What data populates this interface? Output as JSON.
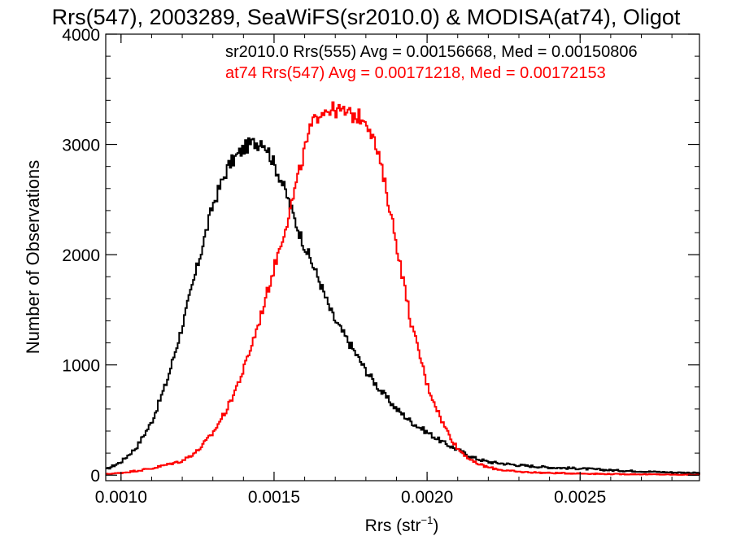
{
  "chart_data": {
    "type": "line",
    "title": "Rrs(547), 2003289, SeaWiFS(sr2010.0) & MODISA(at74), Oligot",
    "xlabel_main": "Rrs (str",
    "xlabel_sup": "−1",
    "xlabel_close": ")",
    "ylabel": "Number of Observations",
    "xlim": [
      0.00095,
      0.00289
    ],
    "ylim": [
      -50,
      4000
    ],
    "x_ticks": [
      {
        "value": 0.001,
        "label": "0.0010"
      },
      {
        "value": 0.0015,
        "label": "0.0015"
      },
      {
        "value": 0.002,
        "label": "0.0020"
      },
      {
        "value": 0.0025,
        "label": "0.0025"
      }
    ],
    "y_ticks": [
      {
        "value": 0,
        "label": "0"
      },
      {
        "value": 1000,
        "label": "1000"
      },
      {
        "value": 2000,
        "label": "2000"
      },
      {
        "value": 3000,
        "label": "3000"
      },
      {
        "value": 4000,
        "label": "4000"
      }
    ],
    "grid": false,
    "legend_placement": "top-right",
    "legend": [
      {
        "text": "sr2010.0 Rrs(555) Avg = 0.00156668, Med = 0.00150806",
        "color": "#000000"
      },
      {
        "text": "at74 Rrs(547) Avg = 0.00171218, Med = 0.00172153",
        "color": "#ff0000"
      }
    ],
    "series": [
      {
        "color": "#000000",
        "x": [
          0.00095,
          0.001,
          0.00105,
          0.0011,
          0.00115,
          0.0012,
          0.00125,
          0.0013,
          0.00135,
          0.00138,
          0.0014,
          0.00142,
          0.00144,
          0.00145,
          0.00146,
          0.00148,
          0.0015,
          0.00152,
          0.00154,
          0.00156,
          0.00158,
          0.0016,
          0.00162,
          0.00165,
          0.00168,
          0.0017,
          0.00175,
          0.0018,
          0.00185,
          0.0019,
          0.00195,
          0.002,
          0.00205,
          0.0021,
          0.00215,
          0.0022,
          0.0023,
          0.0024,
          0.0025,
          0.0026,
          0.0027,
          0.0028,
          0.00289
        ],
        "y": [
          50,
          120,
          250,
          480,
          850,
          1350,
          1900,
          2450,
          2800,
          2900,
          2960,
          3000,
          3020,
          3010,
          3050,
          2950,
          2820,
          2700,
          2550,
          2380,
          2220,
          2080,
          1950,
          1750,
          1520,
          1400,
          1180,
          950,
          760,
          600,
          480,
          390,
          300,
          230,
          160,
          120,
          90,
          70,
          60,
          45,
          35,
          25,
          20
        ]
      },
      {
        "color": "#ff0000",
        "x": [
          0.00095,
          0.001,
          0.0011,
          0.0012,
          0.00125,
          0.0013,
          0.00135,
          0.0014,
          0.00145,
          0.0015,
          0.00155,
          0.00158,
          0.0016,
          0.00162,
          0.00165,
          0.00168,
          0.0017,
          0.00172,
          0.00174,
          0.00176,
          0.00178,
          0.0018,
          0.00182,
          0.00185,
          0.00188,
          0.0019,
          0.00193,
          0.00195,
          0.00198,
          0.002,
          0.00203,
          0.00205,
          0.00208,
          0.0021,
          0.00213,
          0.00215,
          0.0022,
          0.00225,
          0.0023,
          0.0024,
          0.0025,
          0.0026,
          0.0027,
          0.0028,
          0.00289
        ],
        "y": [
          10,
          20,
          60,
          130,
          220,
          380,
          620,
          950,
          1380,
          1880,
          2380,
          2720,
          2950,
          3150,
          3300,
          3320,
          3310,
          3300,
          3280,
          3260,
          3250,
          3230,
          3100,
          2800,
          2400,
          2100,
          1650,
          1350,
          1050,
          820,
          620,
          480,
          330,
          240,
          170,
          120,
          70,
          45,
          30,
          20,
          15,
          10,
          8,
          5,
          3
        ]
      }
    ]
  }
}
